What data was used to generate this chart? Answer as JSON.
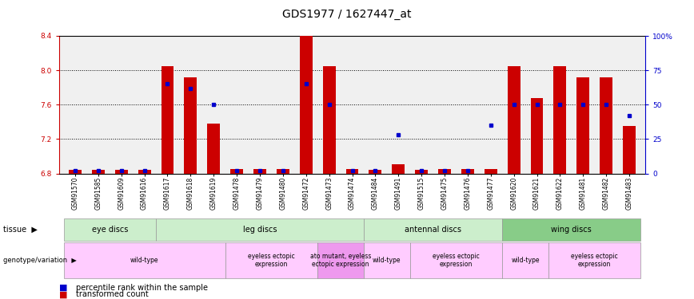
{
  "title": "GDS1977 / 1627447_at",
  "samples": [
    "GSM91570",
    "GSM91585",
    "GSM91609",
    "GSM91616",
    "GSM91617",
    "GSM91618",
    "GSM91619",
    "GSM91478",
    "GSM91479",
    "GSM91480",
    "GSM91472",
    "GSM91473",
    "GSM91474",
    "GSM91484",
    "GSM91491",
    "GSM91515",
    "GSM91475",
    "GSM91476",
    "GSM91477",
    "GSM91620",
    "GSM91621",
    "GSM91622",
    "GSM91481",
    "GSM91482",
    "GSM91483"
  ],
  "red_values": [
    6.84,
    6.84,
    6.84,
    6.84,
    8.05,
    7.92,
    7.38,
    6.85,
    6.85,
    6.85,
    8.4,
    8.05,
    6.85,
    6.84,
    6.91,
    6.84,
    6.85,
    6.85,
    6.85,
    8.05,
    7.68,
    8.05,
    7.92,
    7.92,
    7.35
  ],
  "blue_values": [
    0.02,
    0.02,
    0.02,
    0.02,
    0.65,
    0.62,
    0.5,
    0.02,
    0.02,
    0.02,
    0.65,
    0.5,
    0.02,
    0.02,
    0.28,
    0.02,
    0.02,
    0.02,
    0.35,
    0.5,
    0.5,
    0.5,
    0.5,
    0.5,
    0.42
  ],
  "ylim_left": [
    6.8,
    8.4
  ],
  "ylim_right": [
    0,
    100
  ],
  "yticks_left": [
    6.8,
    7.2,
    7.6,
    8.0,
    8.4
  ],
  "yticks_right": [
    0,
    25,
    50,
    75,
    100
  ],
  "ytick_labels_right": [
    "0",
    "25",
    "50",
    "75",
    "100%"
  ],
  "tissue_groups": [
    {
      "label": "eye discs",
      "start": 0,
      "end": 4,
      "color": "#cceecc"
    },
    {
      "label": "leg discs",
      "start": 4,
      "end": 13,
      "color": "#cceecc"
    },
    {
      "label": "antennal discs",
      "start": 13,
      "end": 19,
      "color": "#cceecc"
    },
    {
      "label": "wing discs",
      "start": 19,
      "end": 25,
      "color": "#88cc88"
    }
  ],
  "genotype_groups": [
    {
      "label": "wild-type",
      "start": 0,
      "end": 7,
      "color": "#ffccff"
    },
    {
      "label": "eyeless ectopic\nexpression",
      "start": 7,
      "end": 11,
      "color": "#ffccff"
    },
    {
      "label": "ato mutant, eyeless\nectopic expression",
      "start": 11,
      "end": 13,
      "color": "#ee99ee"
    },
    {
      "label": "wild-type",
      "start": 13,
      "end": 15,
      "color": "#ffccff"
    },
    {
      "label": "eyeless ectopic\nexpression",
      "start": 15,
      "end": 19,
      "color": "#ffccff"
    },
    {
      "label": "wild-type",
      "start": 19,
      "end": 21,
      "color": "#ffccff"
    },
    {
      "label": "eyeless ectopic\nexpression",
      "start": 21,
      "end": 25,
      "color": "#ffccff"
    }
  ],
  "bar_color": "#cc0000",
  "dot_color": "#0000cc",
  "baseline": 6.8,
  "background_color": "#ffffff",
  "title_fontsize": 10,
  "tick_fontsize": 6.5,
  "label_fontsize": 7
}
